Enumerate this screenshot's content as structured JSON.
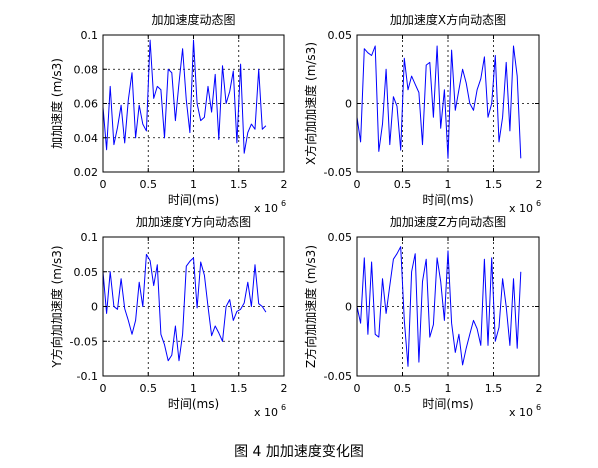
{
  "figure_caption": "图 4  加加速度变化图",
  "chart_data": [
    {
      "type": "line",
      "title": "加加速度动态图",
      "xlabel": "时间(ms)",
      "ylabel": "加加速度 (m/s3)",
      "x_multiplier_label": "x 10",
      "x_multiplier_exp": "6",
      "xlim": [
        0,
        2
      ],
      "ylim": [
        0.02,
        0.1
      ],
      "xticks": [
        0,
        0.5,
        1,
        1.5,
        2
      ],
      "xtick_labels": [
        "0",
        "0.5",
        "1",
        "1.5",
        "2"
      ],
      "yticks": [
        0.02,
        0.04,
        0.06,
        0.08,
        0.1
      ],
      "ytick_labels": [
        "0.02",
        "0.04",
        "0.06",
        "0.08",
        "0.1"
      ],
      "grid": true,
      "line_color": "#0000ff",
      "series": [
        {
          "x": [
            0,
            0.04,
            0.08,
            0.12,
            0.16,
            0.2,
            0.24,
            0.28,
            0.32,
            0.36,
            0.4,
            0.44,
            0.48,
            0.52,
            0.56,
            0.6,
            0.64,
            0.68,
            0.72,
            0.76,
            0.8,
            0.84,
            0.88,
            0.92,
            0.96,
            1.0,
            1.04,
            1.08,
            1.12,
            1.16,
            1.2,
            1.24,
            1.28,
            1.32,
            1.36,
            1.4,
            1.44,
            1.48,
            1.52,
            1.56,
            1.6,
            1.64,
            1.68,
            1.72,
            1.76,
            1.8
          ],
          "y": [
            0.058,
            0.033,
            0.07,
            0.036,
            0.046,
            0.059,
            0.037,
            0.062,
            0.078,
            0.04,
            0.059,
            0.048,
            0.044,
            0.097,
            0.063,
            0.07,
            0.068,
            0.04,
            0.08,
            0.078,
            0.05,
            0.072,
            0.092,
            0.062,
            0.043,
            0.097,
            0.06,
            0.05,
            0.052,
            0.07,
            0.055,
            0.077,
            0.039,
            0.082,
            0.06,
            0.067,
            0.079,
            0.037,
            0.083,
            0.031,
            0.043,
            0.048,
            0.045,
            0.08,
            0.045,
            0.047
          ]
        }
      ]
    },
    {
      "type": "line",
      "title": "加加速度X方向动态图",
      "xlabel": "时间(ms)",
      "ylabel": "X方向加加速度 (m/s3)",
      "x_multiplier_label": "x 10",
      "x_multiplier_exp": "6",
      "xlim": [
        0,
        2
      ],
      "ylim": [
        -0.05,
        0.05
      ],
      "xticks": [
        0,
        0.5,
        1,
        1.5,
        2
      ],
      "xtick_labels": [
        "0",
        "0.5",
        "1",
        "1.5",
        "2"
      ],
      "yticks": [
        -0.05,
        0,
        0.05
      ],
      "ytick_labels": [
        "-0.05",
        "0",
        "0.05"
      ],
      "grid": true,
      "line_color": "#0000ff",
      "series": [
        {
          "x": [
            0,
            0.04,
            0.08,
            0.12,
            0.16,
            0.2,
            0.24,
            0.28,
            0.32,
            0.36,
            0.4,
            0.44,
            0.48,
            0.52,
            0.56,
            0.6,
            0.64,
            0.68,
            0.72,
            0.76,
            0.8,
            0.84,
            0.88,
            0.92,
            0.96,
            1.0,
            1.04,
            1.08,
            1.12,
            1.16,
            1.2,
            1.24,
            1.28,
            1.32,
            1.36,
            1.4,
            1.44,
            1.48,
            1.52,
            1.56,
            1.6,
            1.64,
            1.68,
            1.72,
            1.76,
            1.8
          ],
          "y": [
            -0.01,
            -0.028,
            0.04,
            0.037,
            0.035,
            0.042,
            -0.035,
            -0.015,
            0.025,
            -0.03,
            0.005,
            -0.002,
            -0.034,
            0.033,
            0.01,
            0.02,
            0.014,
            0.008,
            -0.03,
            0.028,
            0.03,
            -0.01,
            0.042,
            -0.018,
            0.01,
            -0.04,
            0.039,
            -0.005,
            0.01,
            0.025,
            0.015,
            0.0,
            -0.005,
            0.01,
            0.018,
            0.034,
            -0.01,
            0.0,
            0.035,
            -0.028,
            -0.01,
            0.03,
            -0.02,
            0.042,
            0.02,
            -0.04
          ]
        }
      ]
    },
    {
      "type": "line",
      "title": "加加速度Y方向动态图",
      "xlabel": "时间(ms)",
      "ylabel": "Y方向加加速度 (m/s3)",
      "x_multiplier_label": "x 10",
      "x_multiplier_exp": "6",
      "xlim": [
        0,
        2
      ],
      "ylim": [
        -0.1,
        0.1
      ],
      "xticks": [
        0,
        0.5,
        1,
        1.5,
        2
      ],
      "xtick_labels": [
        "0",
        "0.5",
        "1",
        "1.5",
        "2"
      ],
      "yticks": [
        -0.1,
        -0.05,
        0,
        0.05,
        0.1
      ],
      "ytick_labels": [
        "-0.1",
        "-0.05",
        "0",
        "0.05",
        "0.1"
      ],
      "grid": true,
      "line_color": "#0000ff",
      "series": [
        {
          "x": [
            0,
            0.04,
            0.08,
            0.12,
            0.16,
            0.2,
            0.24,
            0.28,
            0.32,
            0.36,
            0.4,
            0.44,
            0.48,
            0.52,
            0.56,
            0.6,
            0.64,
            0.68,
            0.72,
            0.76,
            0.8,
            0.84,
            0.88,
            0.92,
            0.96,
            1.0,
            1.04,
            1.08,
            1.12,
            1.16,
            1.2,
            1.24,
            1.28,
            1.32,
            1.36,
            1.4,
            1.44,
            1.48,
            1.52,
            1.56,
            1.6,
            1.64,
            1.68,
            1.72,
            1.76,
            1.8
          ],
          "y": [
            0.05,
            -0.01,
            0.05,
            0.0,
            -0.004,
            0.04,
            -0.003,
            -0.02,
            -0.04,
            -0.02,
            0.035,
            0.0,
            0.075,
            0.066,
            0.03,
            0.06,
            -0.04,
            -0.055,
            -0.078,
            -0.07,
            -0.028,
            -0.078,
            -0.04,
            0.058,
            0.065,
            0.07,
            -0.002,
            0.064,
            0.045,
            0.0,
            -0.042,
            -0.028,
            -0.038,
            -0.05,
            0.0,
            0.01,
            -0.02,
            -0.007,
            -0.004,
            0.005,
            0.035,
            0.0,
            0.06,
            0.004,
            0.0,
            -0.008
          ]
        }
      ]
    },
    {
      "type": "line",
      "title": "加加速度Z方向动态图",
      "xlabel": "时间(ms)",
      "ylabel": "Z方向加加速度 (m/s3)",
      "x_multiplier_label": "x 10",
      "x_multiplier_exp": "6",
      "xlim": [
        0,
        2
      ],
      "ylim": [
        -0.05,
        0.05
      ],
      "xticks": [
        0,
        0.5,
        1,
        1.5,
        2
      ],
      "xtick_labels": [
        "0",
        "0.5",
        "1",
        "1.5",
        "2"
      ],
      "yticks": [
        -0.05,
        0,
        0.05
      ],
      "ytick_labels": [
        "-0.05",
        "0",
        "0.05"
      ],
      "grid": true,
      "line_color": "#0000ff",
      "series": [
        {
          "x": [
            0,
            0.04,
            0.08,
            0.12,
            0.16,
            0.2,
            0.24,
            0.28,
            0.32,
            0.36,
            0.4,
            0.44,
            0.48,
            0.52,
            0.56,
            0.6,
            0.64,
            0.68,
            0.72,
            0.76,
            0.8,
            0.84,
            0.88,
            0.92,
            0.96,
            1.0,
            1.04,
            1.08,
            1.12,
            1.16,
            1.2,
            1.24,
            1.28,
            1.32,
            1.36,
            1.4,
            1.44,
            1.48,
            1.52,
            1.56,
            1.6,
            1.64,
            1.68,
            1.72,
            1.76,
            1.8
          ],
          "y": [
            0.0,
            -0.012,
            0.035,
            -0.02,
            0.032,
            -0.02,
            -0.022,
            0.02,
            -0.005,
            0.015,
            0.034,
            0.038,
            0.043,
            -0.01,
            -0.043,
            0.025,
            0.038,
            -0.04,
            0.018,
            0.034,
            -0.022,
            -0.013,
            0.035,
            0.018,
            -0.01,
            0.04,
            -0.012,
            -0.033,
            -0.02,
            -0.042,
            -0.03,
            -0.02,
            -0.01,
            -0.016,
            -0.028,
            0.034,
            -0.028,
            0.035,
            -0.025,
            -0.015,
            0.02,
            0.0,
            -0.028,
            0.02,
            -0.03,
            0.025
          ]
        }
      ]
    }
  ]
}
